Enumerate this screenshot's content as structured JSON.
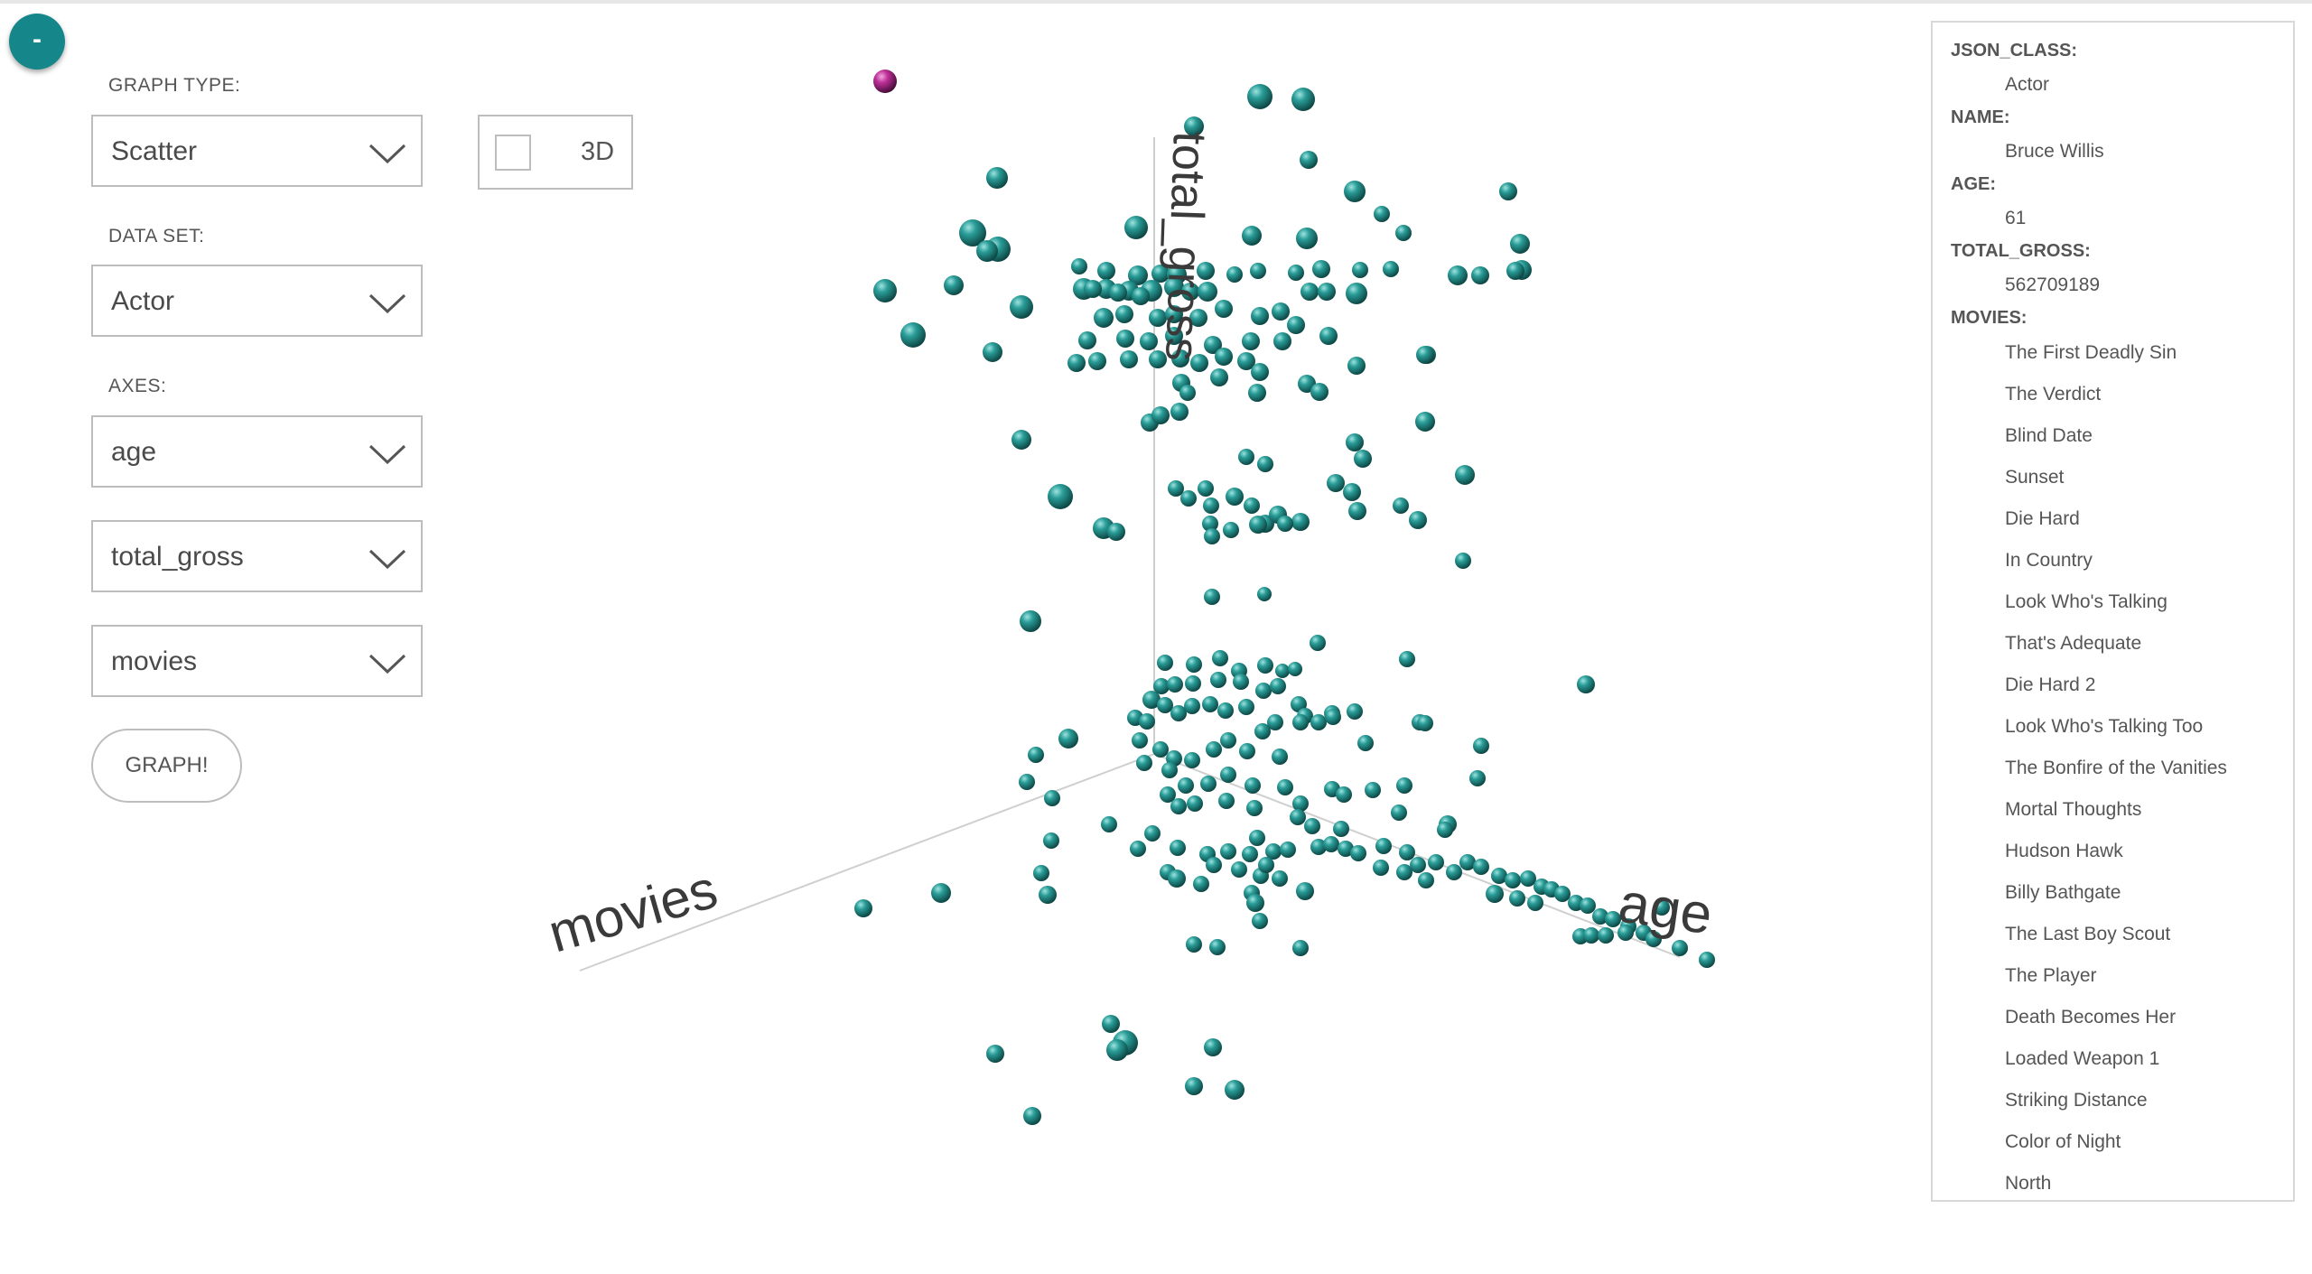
{
  "toggle": {
    "label": "-"
  },
  "form": {
    "graph_type_label": "GRAPH TYPE:",
    "graph_type_value": "Scatter",
    "three_d_label": "3D",
    "three_d_checked": false,
    "data_set_label": "DATA SET:",
    "data_set_value": "Actor",
    "axes_label": "AXES:",
    "axis_values": [
      "age",
      "total_gross",
      "movies"
    ],
    "graph_button": "GRAPH!"
  },
  "chart_data": {
    "type": "scatter",
    "axis_labels": {
      "x": "movies",
      "y": "total_gross",
      "z": "age"
    },
    "point_color": "#2a9d98",
    "highlight_color": "#c0309a"
  },
  "panel": {
    "json_class_key": "JSON_CLASS:",
    "json_class_value": "Actor",
    "name_key": "NAME:",
    "name_value": "Bruce Willis",
    "age_key": "AGE:",
    "age_value": "61",
    "total_gross_key": "TOTAL_GROSS:",
    "total_gross_value": "562709189",
    "movies_key": "MOVIES:",
    "movies": [
      "The First Deadly Sin",
      "The Verdict",
      "Blind Date",
      "Sunset",
      "Die Hard",
      "In Country",
      "Look Who's Talking",
      "That's Adequate",
      "Die Hard 2",
      "Look Who's Talking Too",
      "The Bonfire of the Vanities",
      "Mortal Thoughts",
      "Hudson Hawk",
      "Billy Bathgate",
      "The Last Boy Scout",
      "The Player",
      "Death Becomes Her",
      "Loaded Weapon 1",
      "Striking Distance",
      "Color of Night",
      "North"
    ]
  }
}
